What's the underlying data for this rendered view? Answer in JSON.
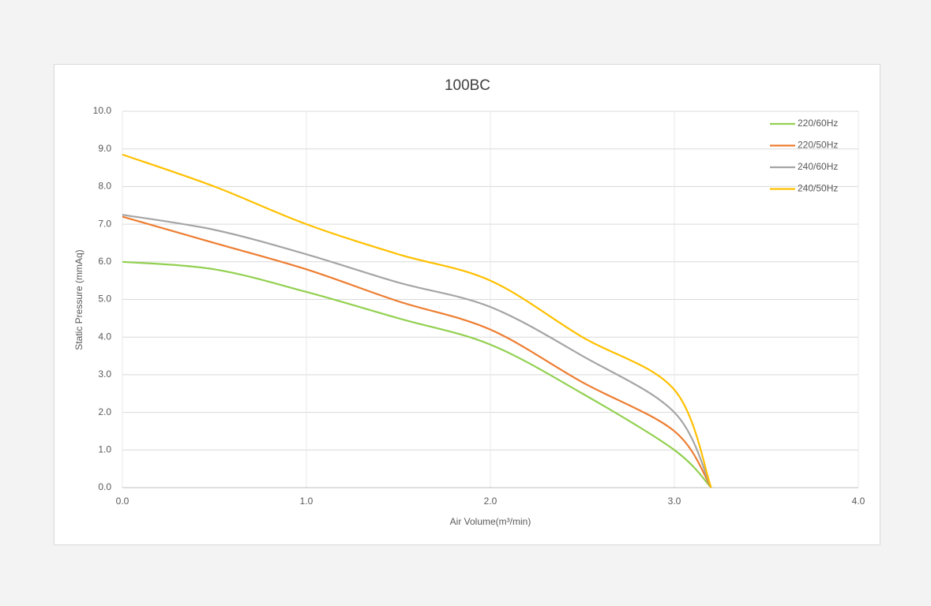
{
  "chart_data": {
    "type": "line",
    "title": "100BC",
    "x_label": "Air Volume(m³/min)",
    "y_label": "Static Pressure (mmAq)",
    "x": [
      0,
      0.5,
      1.0,
      1.5,
      2.0,
      2.5,
      3.0,
      3.2
    ],
    "series": [
      {
        "name": "220/60Hz",
        "color": "#92d050",
        "values": [
          6.0,
          5.8,
          5.2,
          4.5,
          3.8,
          2.5,
          1.0,
          0
        ]
      },
      {
        "name": "220/50Hz",
        "color": "#ed7d31",
        "values": [
          7.2,
          6.5,
          5.8,
          4.95,
          4.2,
          2.8,
          1.5,
          0
        ]
      },
      {
        "name": "240/60Hz",
        "color": "#a5a5a5",
        "values": [
          7.25,
          6.85,
          6.2,
          5.45,
          4.8,
          3.5,
          2.0,
          0
        ]
      },
      {
        "name": "240/50Hz",
        "color": "#ffc000",
        "values": [
          8.85,
          8.0,
          7.0,
          6.2,
          5.5,
          4.0,
          2.6,
          0
        ]
      }
    ],
    "xlim": [
      0,
      4
    ],
    "xticks": [
      {
        "value": 0,
        "label": "0.0"
      },
      {
        "value": 1,
        "label": "1.0"
      },
      {
        "value": 2,
        "label": "2.0"
      },
      {
        "value": 3,
        "label": "3.0"
      },
      {
        "value": 4,
        "label": "4.0"
      }
    ],
    "ylim": [
      0,
      10
    ],
    "yticks": [
      {
        "value": 0,
        "label": "0.0"
      },
      {
        "value": 1,
        "label": "1.0"
      },
      {
        "value": 2,
        "label": "2.0"
      },
      {
        "value": 3,
        "label": "3.0"
      },
      {
        "value": 4,
        "label": "4.0"
      },
      {
        "value": 5,
        "label": "5.0"
      },
      {
        "value": 6,
        "label": "6.0"
      },
      {
        "value": 7,
        "label": "7.0"
      },
      {
        "value": 8,
        "label": "8.0"
      },
      {
        "value": 9,
        "label": "9.0"
      },
      {
        "value": 10,
        "label": "10.0"
      }
    ],
    "grid": true,
    "legend": "top-right"
  }
}
